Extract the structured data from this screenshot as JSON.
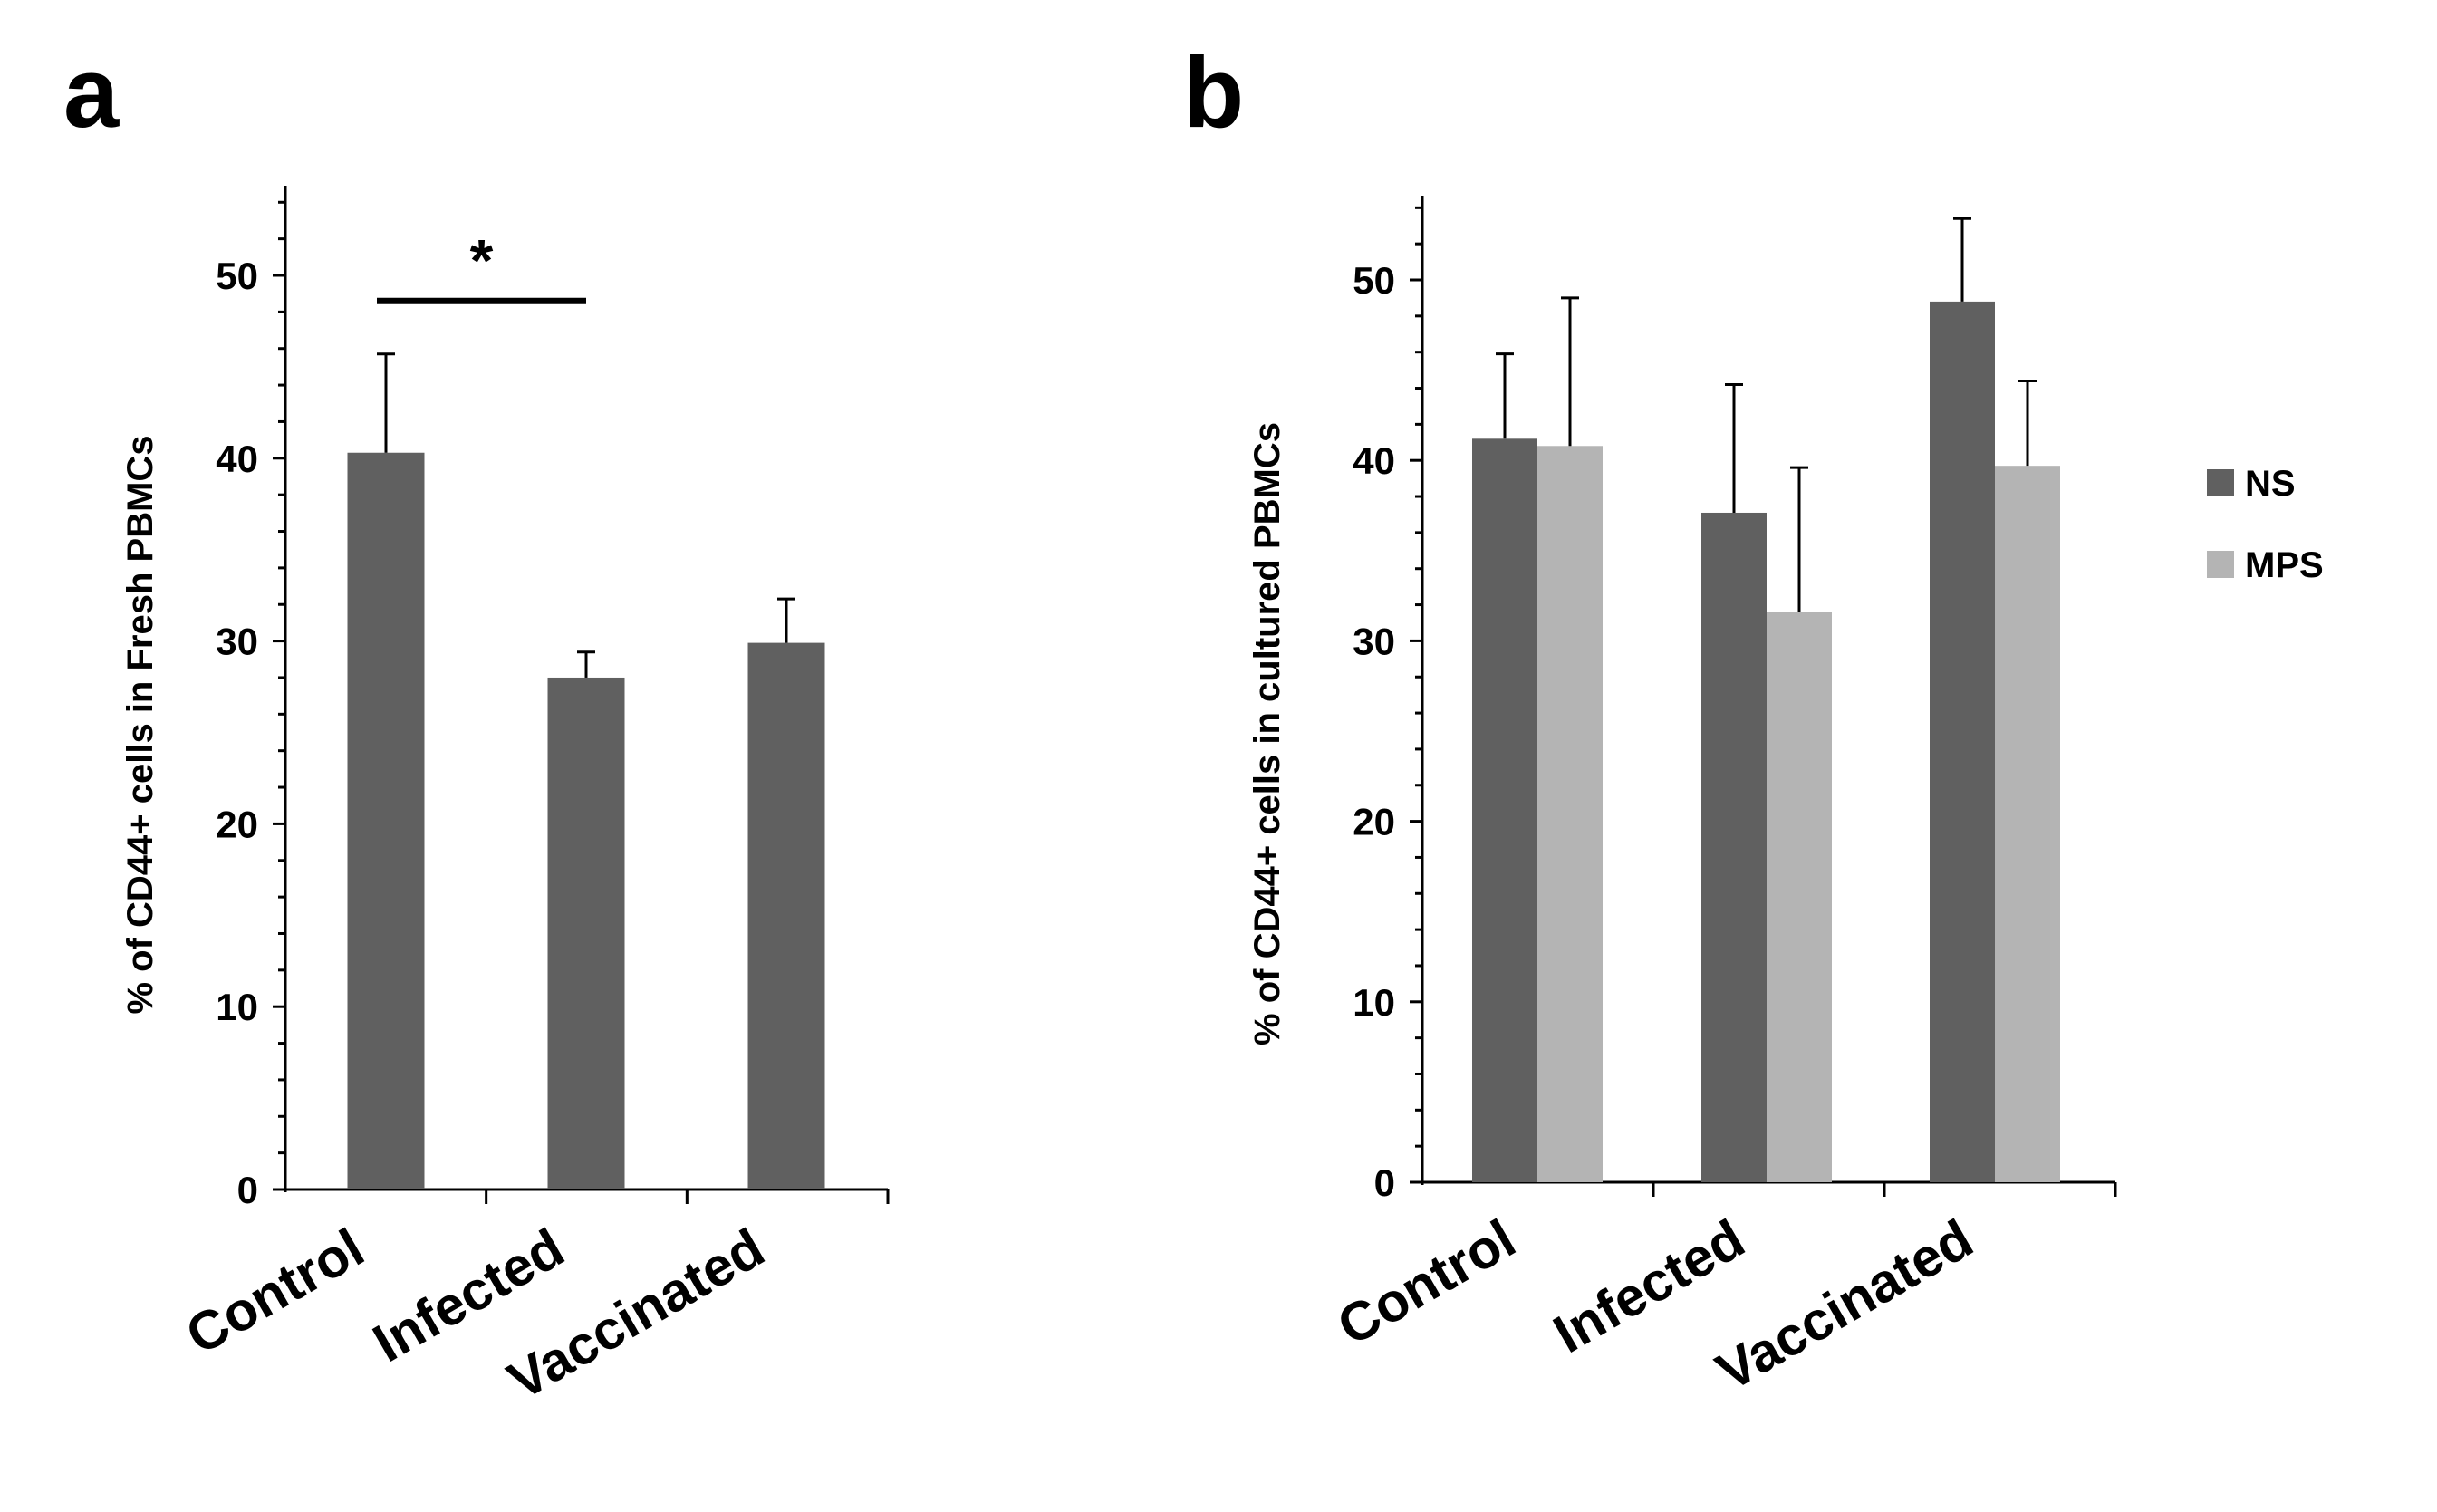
{
  "chart_data": [
    {
      "panel": "a",
      "type": "bar",
      "title": "",
      "xlabel": "",
      "ylabel": "% of CD44+ cells in Fresh PBMCs",
      "categories": [
        "Control",
        "Infected",
        "Vaccinated"
      ],
      "series": [
        {
          "name": "",
          "color": "#606060",
          "values": [
            40.3,
            28.0,
            29.9
          ],
          "errors": [
            5.4,
            1.4,
            2.4
          ]
        }
      ],
      "ylim": [
        0,
        55
      ],
      "yticks": [
        0,
        10,
        20,
        30,
        40,
        50
      ],
      "significance": {
        "from": "Control",
        "to": "Infected",
        "label": "*",
        "level": 48.6
      },
      "legend": null
    },
    {
      "panel": "b",
      "type": "bar",
      "title": "",
      "xlabel": "",
      "ylabel": "% of CD44+ cells in  cultured PBMCs",
      "categories": [
        "Control",
        "Infected",
        "Vaccinated"
      ],
      "series": [
        {
          "name": "NS",
          "color": "#606060",
          "values": [
            41.2,
            37.1,
            48.8
          ],
          "errors": [
            4.7,
            7.1,
            4.6
          ]
        },
        {
          "name": "MPS",
          "color": "#b4b4b4",
          "values": [
            40.8,
            31.6,
            39.7
          ],
          "errors": [
            8.2,
            8.0,
            4.7
          ]
        }
      ],
      "ylim": [
        0,
        55
      ],
      "yticks": [
        0,
        10,
        20,
        30,
        40,
        50
      ],
      "legend": {
        "position": "right"
      }
    }
  ]
}
